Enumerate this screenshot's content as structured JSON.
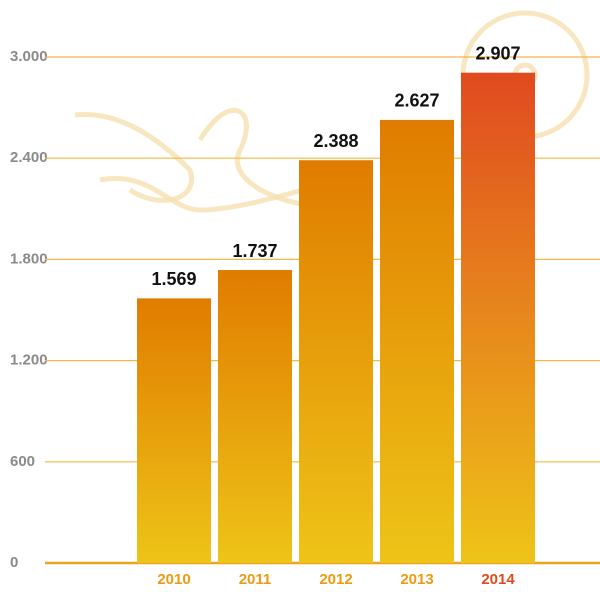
{
  "chart_data": {
    "type": "bar",
    "categories": [
      "2010",
      "2011",
      "2012",
      "2013",
      "2014"
    ],
    "values": [
      1569,
      1737,
      2388,
      2627,
      2907
    ],
    "value_labels": [
      "1.569",
      "1.737",
      "2.388",
      "2.627",
      "2.907"
    ],
    "colors": [
      "#e07c00",
      "#e07c00",
      "#e07c00",
      "#e07c00",
      "#e04a20"
    ],
    "ylim": [
      0,
      3000
    ],
    "yticks": [
      0,
      {
        "value": 600,
        "label": "600"
      },
      {
        "value": 1200,
        "label": "1.200"
      },
      {
        "value": 1800,
        "label": "1.800"
      },
      {
        "value": 2400,
        "label": "2.400"
      },
      {
        "value": 3000,
        "label": "3.000"
      }
    ],
    "grid": true
  }
}
